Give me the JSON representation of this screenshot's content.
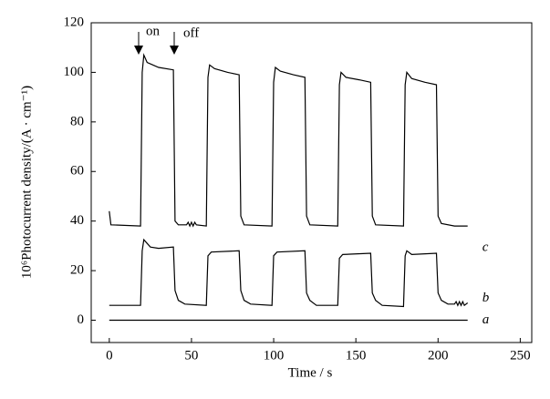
{
  "chart_data": {
    "type": "line",
    "xlabel": "Time / s",
    "ylabel": "10⁶Photocurrent density/(A · cm⁻¹)",
    "annotations": [
      "on",
      "off"
    ],
    "xlim": [
      -11,
      257
    ],
    "ylim": [
      -9,
      120
    ],
    "xticks": [
      0,
      50,
      100,
      150,
      200,
      250
    ],
    "yticks": [
      0,
      20,
      40,
      60,
      80,
      100,
      120
    ],
    "series": [
      {
        "name": "a",
        "color": "#000000",
        "x": [
          0,
          218
        ],
        "values": [
          0,
          0
        ]
      },
      {
        "name": "b",
        "color": "#000000",
        "x": [
          0,
          19,
          20,
          21,
          23,
          25,
          30,
          39,
          40,
          42,
          46,
          59,
          60,
          62,
          79,
          80,
          82,
          86,
          99,
          100,
          102,
          119,
          120,
          122,
          126,
          139,
          140,
          142,
          159,
          160,
          162,
          166,
          179,
          180,
          181,
          184,
          199,
          200,
          202,
          206,
          210,
          211,
          212,
          213,
          214,
          215,
          216,
          218
        ],
        "values": [
          6,
          6,
          28,
          32.5,
          31,
          29.5,
          29,
          29.5,
          12,
          8,
          6.5,
          6,
          26,
          27.5,
          28,
          12,
          8,
          6.5,
          6,
          26,
          27.5,
          28,
          11,
          8,
          6,
          6,
          25,
          26.5,
          27,
          11,
          8,
          6,
          5.5,
          26,
          28,
          26.5,
          27,
          11,
          8,
          6.5,
          6.5,
          7.5,
          6,
          7.5,
          6,
          7.5,
          6,
          7
        ]
      },
      {
        "name": "c",
        "color": "#000000",
        "x": [
          0,
          1,
          19,
          20,
          21,
          23,
          30,
          39,
          40,
          42,
          47,
          48,
          49,
          50,
          51,
          52,
          53,
          59,
          60,
          61,
          64,
          72,
          79,
          80,
          82,
          99,
          100,
          101,
          104,
          112,
          119,
          120,
          122,
          139,
          140,
          141,
          144,
          152,
          159,
          160,
          162,
          179,
          180,
          181,
          184,
          192,
          199,
          200,
          202,
          210,
          218
        ],
        "values": [
          44,
          38.5,
          38,
          100,
          107,
          104,
          102,
          101,
          40,
          38.5,
          38.5,
          39.5,
          38,
          39.5,
          38,
          39.5,
          38.5,
          38,
          98,
          103,
          101.5,
          100,
          99,
          42,
          38.5,
          38,
          96,
          102,
          100.5,
          99,
          98,
          42,
          38.5,
          38,
          95,
          100,
          98,
          97,
          96,
          42,
          38.5,
          38,
          95,
          100,
          97.5,
          96,
          95,
          42,
          39,
          38,
          38
        ]
      }
    ]
  }
}
